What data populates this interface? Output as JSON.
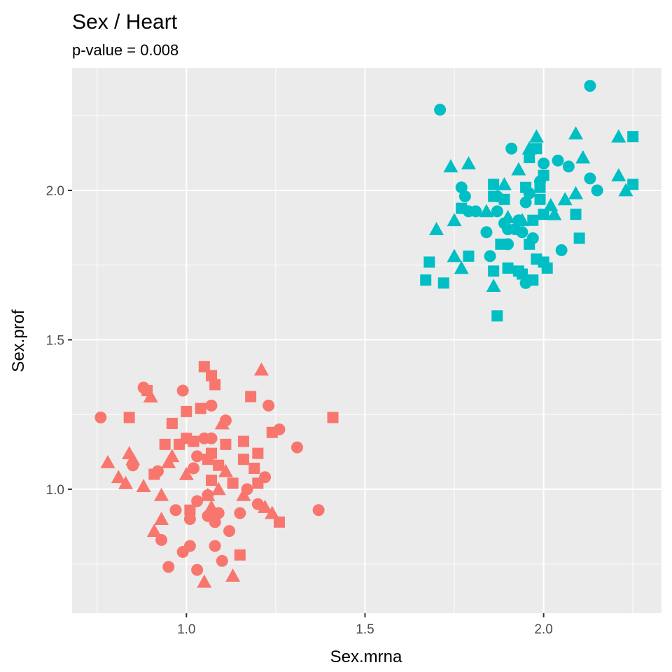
{
  "chart_data": {
    "type": "scatter",
    "title": "Sex / Heart",
    "subtitle": "p-value = 0.008",
    "xlabel": "Sex.mrna",
    "ylabel": "Sex.prof",
    "xlim": [
      0.68,
      2.33
    ],
    "ylim": [
      0.585,
      2.41
    ],
    "xticks": [
      1.0,
      1.5,
      2.0
    ],
    "xtick_labels": [
      "1.0",
      "1.5",
      "2.0"
    ],
    "yticks": [
      1.0,
      1.5,
      2.0
    ],
    "ytick_labels": [
      "1.0",
      "1.5",
      "2.0"
    ],
    "grid": true,
    "legend": "none",
    "colors": {
      "group1": "#f8766d",
      "group2": "#00bfc4"
    },
    "series": [
      {
        "color": "#f8766d",
        "points": [
          [
            0.76,
            1.24,
            "c"
          ],
          [
            0.88,
            1.34,
            "c"
          ],
          [
            0.85,
            1.08,
            "c"
          ],
          [
            0.92,
            1.06,
            "c"
          ],
          [
            0.93,
            0.83,
            "c"
          ],
          [
            0.95,
            0.74,
            "c"
          ],
          [
            0.97,
            0.93,
            "c"
          ],
          [
            0.99,
            1.33,
            "c"
          ],
          [
            0.99,
            0.79,
            "c"
          ],
          [
            1.01,
            0.81,
            "c"
          ],
          [
            1.01,
            0.9,
            "c"
          ],
          [
            1.02,
            1.07,
            "c"
          ],
          [
            1.03,
            0.96,
            "c"
          ],
          [
            1.03,
            1.11,
            "c"
          ],
          [
            1.03,
            0.73,
            "c"
          ],
          [
            1.05,
            1.17,
            "c"
          ],
          [
            1.06,
            0.91,
            "c"
          ],
          [
            1.06,
            0.98,
            "c"
          ],
          [
            1.07,
            1.28,
            "c"
          ],
          [
            1.07,
            1.17,
            "c"
          ],
          [
            1.08,
            0.89,
            "c"
          ],
          [
            1.08,
            0.81,
            "c"
          ],
          [
            1.09,
            0.92,
            "c"
          ],
          [
            1.1,
            0.76,
            "c"
          ],
          [
            1.11,
            1.23,
            "c"
          ],
          [
            1.12,
            0.86,
            "c"
          ],
          [
            1.15,
            0.92,
            "c"
          ],
          [
            1.17,
            1.0,
            "c"
          ],
          [
            1.2,
            0.95,
            "c"
          ],
          [
            1.22,
            1.04,
            "c"
          ],
          [
            1.23,
            1.28,
            "c"
          ],
          [
            1.26,
            1.2,
            "c"
          ],
          [
            1.31,
            1.14,
            "c"
          ],
          [
            1.37,
            0.93,
            "c"
          ],
          [
            0.84,
            1.24,
            "s"
          ],
          [
            0.89,
            1.33,
            "s"
          ],
          [
            0.91,
            1.05,
            "s"
          ],
          [
            0.94,
            1.15,
            "s"
          ],
          [
            0.96,
            1.22,
            "s"
          ],
          [
            0.98,
            1.15,
            "s"
          ],
          [
            1.0,
            1.26,
            "s"
          ],
          [
            1.0,
            1.17,
            "s"
          ],
          [
            1.01,
            0.93,
            "s"
          ],
          [
            1.02,
            1.16,
            "s"
          ],
          [
            1.04,
            1.27,
            "s"
          ],
          [
            1.05,
            1.41,
            "s"
          ],
          [
            1.06,
            1.1,
            "s"
          ],
          [
            1.07,
            1.38,
            "s"
          ],
          [
            1.07,
            1.12,
            "s"
          ],
          [
            1.07,
            1.03,
            "s"
          ],
          [
            1.08,
            1.35,
            "s"
          ],
          [
            1.09,
            1.08,
            "s"
          ],
          [
            1.11,
            1.15,
            "s"
          ],
          [
            1.13,
            1.02,
            "s"
          ],
          [
            1.15,
            0.78,
            "s"
          ],
          [
            1.16,
            1.16,
            "s"
          ],
          [
            1.16,
            1.1,
            "s"
          ],
          [
            1.18,
            1.31,
            "s"
          ],
          [
            1.19,
            1.07,
            "s"
          ],
          [
            1.2,
            1.12,
            "s"
          ],
          [
            1.2,
            1.02,
            "s"
          ],
          [
            1.24,
            1.19,
            "s"
          ],
          [
            1.26,
            0.89,
            "s"
          ],
          [
            1.41,
            1.24,
            "s"
          ],
          [
            0.78,
            1.09,
            "t"
          ],
          [
            0.81,
            1.04,
            "t"
          ],
          [
            0.83,
            1.02,
            "t"
          ],
          [
            0.84,
            1.12,
            "t"
          ],
          [
            0.85,
            1.1,
            "t"
          ],
          [
            0.88,
            1.01,
            "t"
          ],
          [
            0.9,
            1.31,
            "t"
          ],
          [
            0.91,
            0.86,
            "t"
          ],
          [
            0.93,
            0.98,
            "t"
          ],
          [
            0.93,
            0.9,
            "t"
          ],
          [
            0.95,
            1.09,
            "t"
          ],
          [
            0.96,
            1.11,
            "t"
          ],
          [
            1.0,
            1.05,
            "t"
          ],
          [
            1.05,
            0.69,
            "t"
          ],
          [
            1.06,
            0.98,
            "t"
          ],
          [
            1.07,
            0.94,
            "t"
          ],
          [
            1.09,
            1.0,
            "t"
          ],
          [
            1.1,
            1.22,
            "t"
          ],
          [
            1.11,
            1.06,
            "t"
          ],
          [
            1.13,
            0.71,
            "t"
          ],
          [
            1.16,
            0.98,
            "t"
          ],
          [
            1.21,
            1.4,
            "t"
          ],
          [
            1.22,
            0.94,
            "t"
          ],
          [
            1.24,
            0.92,
            "t"
          ]
        ]
      },
      {
        "color": "#00bfc4",
        "points": [
          [
            1.71,
            2.27,
            "c"
          ],
          [
            1.77,
            2.01,
            "c"
          ],
          [
            1.78,
            1.98,
            "c"
          ],
          [
            1.79,
            1.93,
            "c"
          ],
          [
            1.81,
            1.93,
            "c"
          ],
          [
            1.84,
            1.86,
            "c"
          ],
          [
            1.85,
            1.78,
            "c"
          ],
          [
            1.87,
            1.98,
            "c"
          ],
          [
            1.87,
            1.93,
            "c"
          ],
          [
            1.89,
            1.89,
            "c"
          ],
          [
            1.9,
            1.82,
            "c"
          ],
          [
            1.9,
            1.87,
            "c"
          ],
          [
            1.91,
            2.14,
            "c"
          ],
          [
            1.92,
            1.87,
            "c"
          ],
          [
            1.93,
            1.9,
            "c"
          ],
          [
            1.94,
            1.86,
            "c"
          ],
          [
            1.95,
            1.69,
            "c"
          ],
          [
            1.95,
            1.96,
            "c"
          ],
          [
            1.96,
            1.99,
            "c"
          ],
          [
            1.97,
            1.84,
            "c"
          ],
          [
            1.99,
            2.03,
            "c"
          ],
          [
            2.0,
            2.09,
            "c"
          ],
          [
            2.04,
            2.1,
            "c"
          ],
          [
            2.05,
            1.8,
            "c"
          ],
          [
            2.07,
            2.08,
            "c"
          ],
          [
            2.13,
            2.35,
            "c"
          ],
          [
            2.13,
            2.04,
            "c"
          ],
          [
            2.15,
            2.0,
            "c"
          ],
          [
            1.67,
            1.7,
            "s"
          ],
          [
            1.68,
            1.76,
            "s"
          ],
          [
            1.72,
            1.69,
            "s"
          ],
          [
            1.77,
            1.94,
            "s"
          ],
          [
            1.79,
            1.78,
            "s"
          ],
          [
            1.86,
            2.02,
            "s"
          ],
          [
            1.86,
            1.98,
            "s"
          ],
          [
            1.86,
            1.73,
            "s"
          ],
          [
            1.87,
            1.58,
            "s"
          ],
          [
            1.88,
            1.82,
            "s"
          ],
          [
            1.89,
            1.97,
            "s"
          ],
          [
            1.9,
            1.74,
            "s"
          ],
          [
            1.93,
            1.73,
            "s"
          ],
          [
            1.94,
            1.72,
            "s"
          ],
          [
            1.95,
            2.01,
            "s"
          ],
          [
            1.96,
            1.82,
            "s"
          ],
          [
            1.96,
            2.11,
            "s"
          ],
          [
            1.97,
            1.9,
            "s"
          ],
          [
            1.97,
            1.7,
            "s"
          ],
          [
            1.98,
            1.77,
            "s"
          ],
          [
            1.98,
            2.14,
            "s"
          ],
          [
            1.99,
            2.01,
            "s"
          ],
          [
            1.99,
            1.97,
            "s"
          ],
          [
            2.0,
            2.05,
            "s"
          ],
          [
            2.0,
            1.92,
            "s"
          ],
          [
            2.0,
            1.76,
            "s"
          ],
          [
            2.01,
            1.74,
            "s"
          ],
          [
            2.09,
            1.92,
            "s"
          ],
          [
            2.1,
            1.84,
            "s"
          ],
          [
            2.25,
            2.18,
            "s"
          ],
          [
            2.25,
            2.02,
            "s"
          ],
          [
            1.7,
            1.87,
            "t"
          ],
          [
            1.74,
            2.08,
            "t"
          ],
          [
            1.75,
            1.9,
            "t"
          ],
          [
            1.75,
            1.78,
            "t"
          ],
          [
            1.77,
            1.74,
            "t"
          ],
          [
            1.79,
            2.09,
            "t"
          ],
          [
            1.84,
            1.93,
            "t"
          ],
          [
            1.86,
            1.68,
            "t"
          ],
          [
            1.89,
            2.02,
            "t"
          ],
          [
            1.9,
            1.91,
            "t"
          ],
          [
            1.93,
            2.07,
            "t"
          ],
          [
            1.94,
            1.9,
            "t"
          ],
          [
            1.96,
            2.14,
            "t"
          ],
          [
            1.98,
            2.18,
            "t"
          ],
          [
            2.02,
            1.95,
            "t"
          ],
          [
            2.03,
            1.92,
            "t"
          ],
          [
            2.06,
            1.97,
            "t"
          ],
          [
            2.09,
            2.19,
            "t"
          ],
          [
            2.09,
            1.99,
            "t"
          ],
          [
            2.11,
            2.11,
            "t"
          ],
          [
            2.21,
            2.18,
            "t"
          ],
          [
            2.21,
            2.05,
            "t"
          ],
          [
            2.23,
            2.0,
            "t"
          ]
        ]
      }
    ]
  }
}
